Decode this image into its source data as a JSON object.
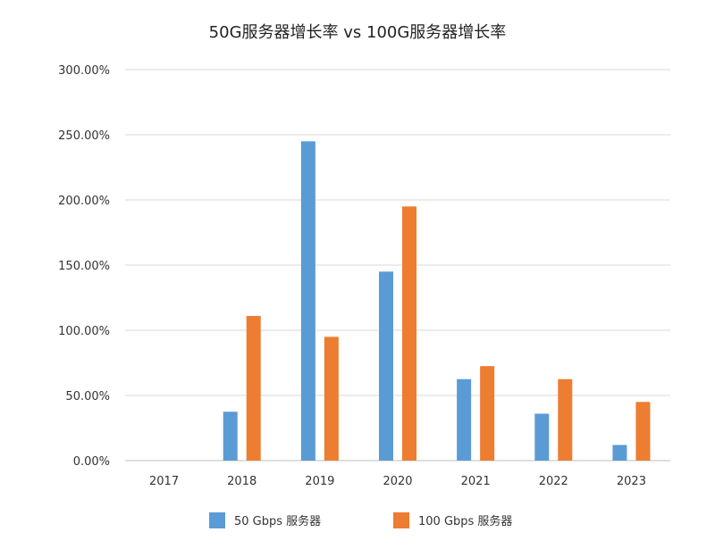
{
  "chart_data": {
    "type": "bar",
    "title": "50G服务器增长率 vs 100G服务器增长率",
    "categories": [
      "2017",
      "2018",
      "2019",
      "2020",
      "2021",
      "2022",
      "2023"
    ],
    "series": [
      {
        "name": "50 Gbps 服务器",
        "color": "#5B9BD5",
        "values": [
          0,
          37.5,
          245,
          145,
          62.5,
          36,
          12
        ]
      },
      {
        "name": "100 Gbps 服务器",
        "color": "#ED7D31",
        "values": [
          0,
          111,
          95,
          195,
          72.5,
          62.5,
          45
        ]
      }
    ],
    "ylim": [
      0,
      300
    ],
    "yticks": [
      0,
      50,
      100,
      150,
      200,
      250,
      300
    ],
    "ytick_labels": [
      "0.00%",
      "50.00%",
      "100.00%",
      "150.00%",
      "200.00%",
      "250.00%",
      "300.00%"
    ],
    "grid": true,
    "legend_position": "bottom"
  }
}
